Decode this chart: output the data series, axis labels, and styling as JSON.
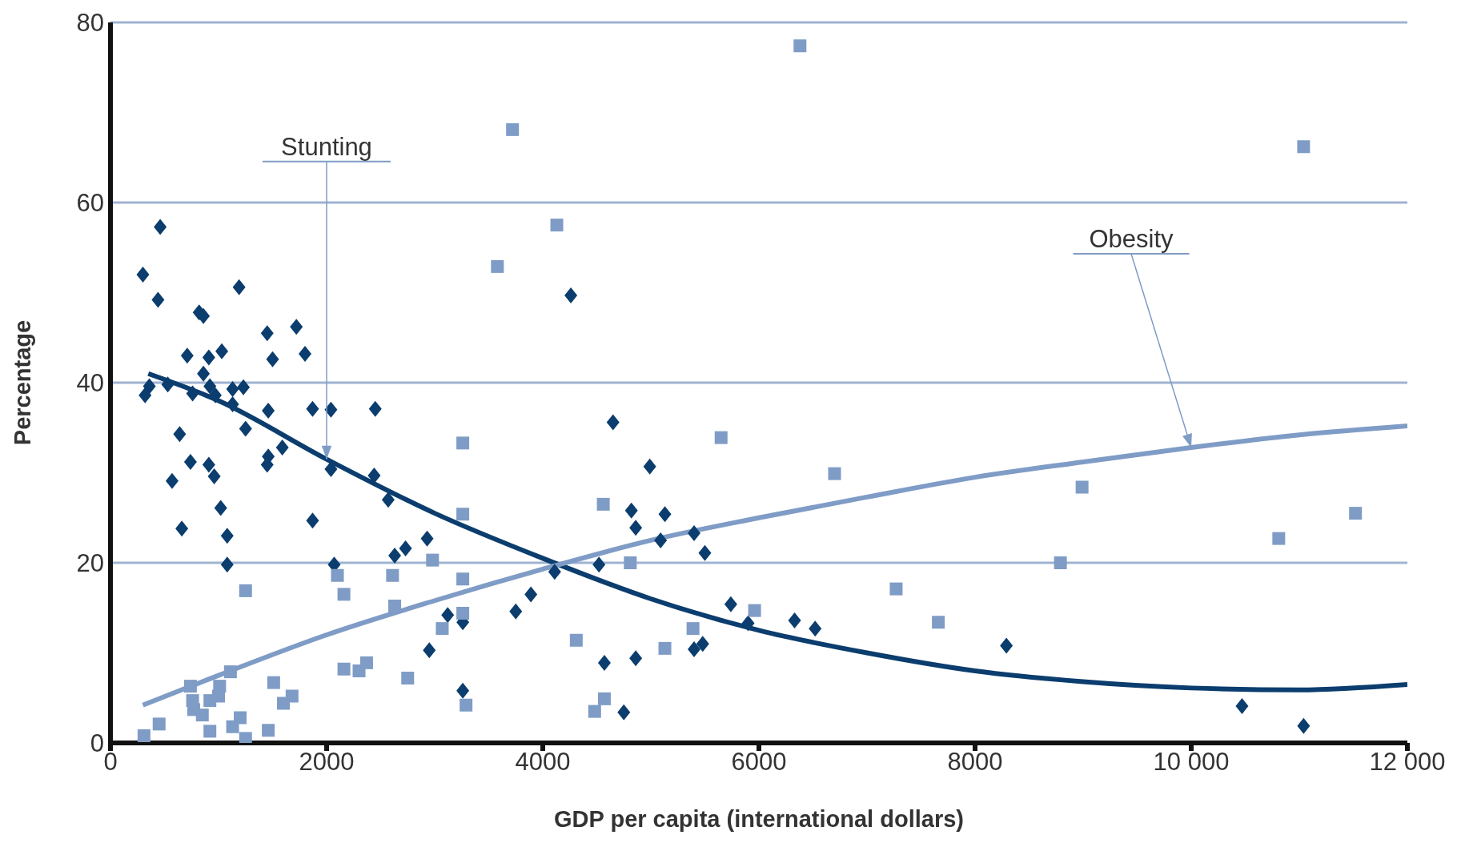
{
  "chart_data": {
    "type": "scatter",
    "xlabel": "GDP per capita (international dollars)",
    "ylabel": "Percentage",
    "xlim": [
      0,
      12000
    ],
    "xticks": [
      0,
      2000,
      4000,
      6000,
      8000,
      {
        "value": 10000,
        "label": "10 000"
      },
      {
        "value": 12000,
        "label": "12 000"
      }
    ],
    "ylim": [
      0,
      80
    ],
    "yticks": [
      0,
      20,
      40,
      60,
      80
    ],
    "grid": "y",
    "series": [
      {
        "color": "#0b3d6e",
        "marker": "diamond",
        "x": [
          300,
          460,
          440,
          820,
          860,
          1190,
          710,
          910,
          1030,
          860,
          1450,
          1720,
          1500,
          1800,
          320,
          360,
          530,
          760,
          920,
          970,
          1130,
          1230,
          1130,
          1460,
          1870,
          2450,
          640,
          1250,
          740,
          910,
          960,
          570,
          660,
          1020,
          1080,
          1080,
          1450,
          1460,
          1590,
          2040,
          1870,
          2040,
          2440,
          2570,
          2630,
          2730,
          2930,
          2070,
          2950,
          3120,
          3260,
          3260,
          3750,
          3890,
          4110,
          4260,
          4650,
          4990,
          4820,
          4860,
          5130,
          5090,
          5400,
          5500,
          4520,
          4570,
          4860,
          4750,
          5400,
          5480,
          5740,
          5900,
          6330,
          6520,
          8290,
          10470,
          11040
        ],
        "values": [
          52,
          57.3,
          49.2,
          47.8,
          47.4,
          50.6,
          43,
          42.8,
          43.5,
          41,
          45.5,
          46.2,
          42.6,
          43.2,
          38.6,
          39.6,
          39.8,
          38.8,
          39.6,
          38.6,
          39.3,
          39.5,
          37.6,
          36.9,
          37.1,
          37.1,
          34.3,
          34.9,
          31.2,
          30.9,
          29.6,
          29.1,
          23.8,
          26.1,
          23,
          19.8,
          30.9,
          31.8,
          32.8,
          37,
          24.7,
          30.4,
          29.7,
          27,
          20.8,
          21.6,
          22.7,
          19.8,
          10.3,
          14.2,
          13.4,
          5.8,
          14.6,
          16.5,
          19,
          49.7,
          35.6,
          30.7,
          25.8,
          23.9,
          25.4,
          22.5,
          23.3,
          21.1,
          19.8,
          8.9,
          9.4,
          3.4,
          10.4,
          11,
          15.4,
          13.3,
          13.6,
          12.7,
          10.8,
          4.1,
          1.9
        ]
      },
      {
        "color": "#7f9cc6",
        "marker": "square",
        "x": [
          310,
          450,
          740,
          760,
          770,
          850,
          920,
          1000,
          1010,
          1110,
          1200,
          1130,
          1250,
          920,
          1250,
          1460,
          1510,
          1600,
          1680,
          2100,
          2160,
          2160,
          2300,
          2370,
          2610,
          2630,
          2750,
          2980,
          3070,
          3260,
          3260,
          3260,
          3260,
          3290,
          3580,
          3720,
          4130,
          4310,
          4480,
          4570,
          4560,
          4810,
          5130,
          5390,
          5650,
          5960,
          6380,
          6700,
          7270,
          7660,
          8790,
          8990,
          10810,
          11040,
          11520
        ],
        "values": [
          0.8,
          2.1,
          6.3,
          4.7,
          3.7,
          3.1,
          4.7,
          5.2,
          6.3,
          7.9,
          2.8,
          1.8,
          0.5,
          1.3,
          16.9,
          1.4,
          6.7,
          4.4,
          5.2,
          18.6,
          16.5,
          8.2,
          8,
          8.9,
          18.6,
          15.2,
          7.2,
          20.3,
          12.7,
          33.3,
          25.4,
          18.2,
          14.4,
          4.2,
          52.9,
          68.1,
          57.5,
          11.4,
          3.5,
          4.9,
          26.5,
          20,
          10.5,
          12.7,
          33.9,
          14.7,
          77.4,
          29.9,
          17.1,
          13.4,
          20,
          28.4,
          22.7,
          66.2,
          25.5
        ]
      },
      {
        "type": "line",
        "name": "Stunting",
        "color": "#0b3d6e",
        "x": [
          350,
          1000,
          2000,
          3000,
          4000,
          5000,
          6000,
          7000,
          8000,
          9000,
          10000,
          11000,
          12000
        ],
        "values": [
          41,
          38,
          31.5,
          25.5,
          20.5,
          16,
          12.5,
          10,
          8,
          6.8,
          6.1,
          5.9,
          6.5
        ]
      },
      {
        "type": "line",
        "name": "Obesity",
        "color": "#7f9cc6",
        "x": [
          300,
          1000,
          2000,
          3000,
          4000,
          5000,
          6000,
          7000,
          8000,
          9000,
          10000,
          11000,
          12000
        ],
        "values": [
          4.2,
          7.5,
          12,
          15.8,
          19.3,
          22.5,
          25,
          27.3,
          29.5,
          31.2,
          32.8,
          34.2,
          35.2
        ]
      }
    ]
  }
}
